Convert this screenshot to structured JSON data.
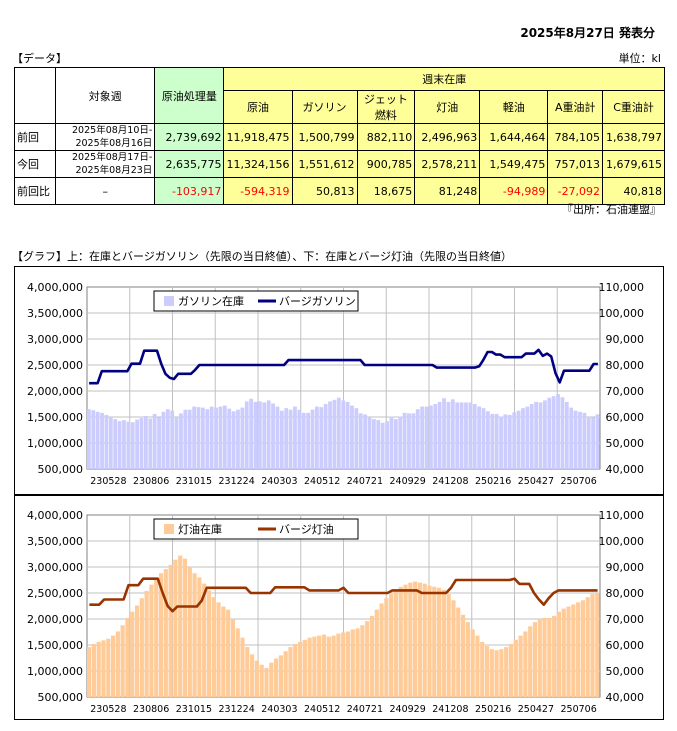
{
  "header": {
    "publish_date": "2025年8月27日 発表分",
    "data_tag": "【データ】",
    "unit": "単位：kl"
  },
  "table": {
    "col_week": "対象週",
    "col_crude_processing": "原油処理量",
    "col_stock_group": "週末在庫",
    "stock_columns": [
      "原油",
      "ガソリン",
      "ジェット燃料",
      "灯油",
      "軽油",
      "A重油計",
      "C重油計"
    ],
    "rows": [
      {
        "label": "前回",
        "week_line1": "2025年08月10日-",
        "week_line2": "2025年08月16日",
        "processing": "2,739,692",
        "values": [
          "11,918,475",
          "1,500,799",
          "882,110",
          "2,496,963",
          "1,644,464",
          "784,105",
          "1,638,797"
        ]
      },
      {
        "label": "今回",
        "week_line1": "2025年08月17日-",
        "week_line2": "2025年08月23日",
        "processing": "2,635,775",
        "values": [
          "11,324,156",
          "1,551,612",
          "900,785",
          "2,578,211",
          "1,549,475",
          "757,013",
          "1,679,615"
        ]
      }
    ],
    "diff_row": {
      "label": "前回比",
      "week": "–",
      "processing": "-103,917",
      "values": [
        "-594,319",
        "50,813",
        "18,675",
        "81,248",
        "-94,989",
        "-27,092",
        "40,818"
      ]
    },
    "source": "『出所：石油連盟』"
  },
  "graph_caption": "【グラフ】上：在庫とバージガソリン（先限の当日終値）、下：在庫とバージ灯油（先限の当日終値）",
  "colors": {
    "gasoline_bar": "#ccccff",
    "gasoline_line": "#000080",
    "kerosene_bar": "#ffcc99",
    "kerosene_line": "#993300",
    "plot_bg": "#ffffff",
    "grid": "#c0c0c0"
  },
  "chart_data": [
    {
      "type": "bar+line",
      "legend": [
        "ガソリン在庫",
        "バージガソリン"
      ],
      "x_tick_labels": [
        "230528",
        "230806",
        "231015",
        "231224",
        "240303",
        "240512",
        "240721",
        "240929",
        "241208",
        "250216",
        "250427",
        "250706"
      ],
      "y_left_ticks": [
        "500,000",
        "1,000,000",
        "1,500,000",
        "2,000,000",
        "2,500,000",
        "3,000,000",
        "3,500,000",
        "4,000,000"
      ],
      "y_right_ticks": [
        "40,000",
        "50,000",
        "60,000",
        "70,000",
        "80,000",
        "90,000",
        "100,000",
        "110,000"
      ],
      "ylim_left": [
        500000,
        4000000
      ],
      "ylim_right": [
        40000,
        110000
      ],
      "stock": [
        1650000,
        1630000,
        1600000,
        1580000,
        1540000,
        1500000,
        1460000,
        1420000,
        1440000,
        1410000,
        1400000,
        1450000,
        1480000,
        1520000,
        1470000,
        1560000,
        1490000,
        1600000,
        1650000,
        1620000,
        1500000,
        1570000,
        1640000,
        1640000,
        1700000,
        1690000,
        1680000,
        1650000,
        1700000,
        1680000,
        1700000,
        1720000,
        1660000,
        1610000,
        1640000,
        1680000,
        1800000,
        1850000,
        1790000,
        1800000,
        1780000,
        1820000,
        1760000,
        1700000,
        1620000,
        1670000,
        1640000,
        1700000,
        1640000,
        1580000,
        1580000,
        1640000,
        1700000,
        1690000,
        1750000,
        1800000,
        1830000,
        1870000,
        1820000,
        1790000,
        1720000,
        1670000,
        1570000,
        1550000,
        1500000,
        1460000,
        1440000,
        1390000,
        1420000,
        1510000,
        1460000,
        1510000,
        1580000,
        1570000,
        1570000,
        1650000,
        1700000,
        1700000,
        1720000,
        1750000,
        1790000,
        1860000,
        1790000,
        1840000,
        1780000,
        1780000,
        1780000,
        1780000,
        1750000,
        1700000,
        1670000,
        1610000,
        1560000,
        1560000,
        1510000,
        1550000,
        1540000,
        1590000,
        1620000,
        1670000,
        1700000,
        1750000,
        1790000,
        1780000,
        1820000,
        1870000,
        1900000,
        1940000,
        1880000,
        1790000,
        1680000,
        1620000,
        1600000,
        1580000,
        1500000,
        1490000,
        1550000
      ],
      "price": [
        73000,
        73000,
        73000,
        77600,
        77600,
        77600,
        77600,
        77600,
        77600,
        77600,
        80500,
        80500,
        80500,
        85500,
        85500,
        85500,
        85500,
        80500,
        76600,
        75100,
        74600,
        76600,
        76600,
        76600,
        76600,
        78100,
        80000,
        80000,
        80000,
        80000,
        80000,
        80000,
        80000,
        80000,
        80000,
        80000,
        80000,
        80000,
        80000,
        80000,
        80000,
        80000,
        80000,
        80000,
        80000,
        80000,
        80000,
        81900,
        81900,
        81900,
        81900,
        81900,
        81900,
        81900,
        81900,
        81900,
        81900,
        81900,
        81900,
        81900,
        81900,
        81900,
        81900,
        81900,
        81900,
        80000,
        80000,
        80000,
        80000,
        80000,
        80000,
        80000,
        80000,
        80000,
        80000,
        80000,
        80000,
        80000,
        80000,
        80000,
        80000,
        80000,
        79000,
        79000,
        79000,
        79000,
        79000,
        79000,
        79000,
        79000,
        79000,
        79000,
        79500,
        82000,
        85000,
        85000,
        84000,
        84000,
        83000,
        83000,
        83000,
        83000,
        83000,
        84400,
        84400,
        84400,
        85800,
        83500,
        84400,
        83300,
        76900,
        73300,
        77800,
        77800,
        77800,
        77800,
        77800,
        77800,
        77800,
        80400,
        80400
      ]
    },
    {
      "type": "bar+line",
      "legend": [
        "灯油在庫",
        "バージ灯油"
      ],
      "x_tick_labels": [
        "230528",
        "230806",
        "231015",
        "231224",
        "240303",
        "240512",
        "240721",
        "240929",
        "241208",
        "250216",
        "250427",
        "250706"
      ],
      "y_left_ticks": [
        "500,000",
        "1,000,000",
        "1,500,000",
        "2,000,000",
        "2,500,000",
        "3,000,000",
        "3,500,000",
        "4,000,000"
      ],
      "y_right_ticks": [
        "40,000",
        "50,000",
        "60,000",
        "70,000",
        "80,000",
        "90,000",
        "100,000",
        "110,000"
      ],
      "ylim_left": [
        500000,
        4000000
      ],
      "ylim_right": [
        40000,
        110000
      ],
      "stock": [
        1460000,
        1520000,
        1560000,
        1590000,
        1620000,
        1680000,
        1760000,
        1880000,
        2020000,
        2140000,
        2260000,
        2400000,
        2540000,
        2660000,
        2780000,
        2880000,
        2960000,
        3040000,
        3140000,
        3220000,
        3160000,
        3000000,
        2880000,
        2800000,
        2680000,
        2550000,
        2420000,
        2320000,
        2240000,
        2180000,
        2000000,
        1820000,
        1640000,
        1460000,
        1320000,
        1200000,
        1120000,
        1060000,
        1160000,
        1240000,
        1300000,
        1380000,
        1460000,
        1520000,
        1560000,
        1600000,
        1640000,
        1660000,
        1680000,
        1700000,
        1660000,
        1680000,
        1720000,
        1740000,
        1760000,
        1800000,
        1820000,
        1880000,
        1960000,
        2060000,
        2180000,
        2300000,
        2400000,
        2480000,
        2560000,
        2620000,
        2660000,
        2700000,
        2720000,
        2700000,
        2680000,
        2640000,
        2620000,
        2600000,
        2560000,
        2480000,
        2360000,
        2220000,
        2080000,
        1940000,
        1800000,
        1680000,
        1560000,
        1480000,
        1420000,
        1400000,
        1420000,
        1460000,
        1520000,
        1600000,
        1680000,
        1760000,
        1860000,
        1940000,
        2000000,
        2020000,
        2020000,
        2060000,
        2140000,
        2200000,
        2240000,
        2280000,
        2320000,
        2360000,
        2420000,
        2480000,
        2500000
      ],
      "price": [
        75500,
        75500,
        75500,
        77500,
        77500,
        77500,
        77500,
        77500,
        83000,
        83000,
        83000,
        85500,
        85500,
        85500,
        85500,
        80000,
        75000,
        73000,
        74800,
        74800,
        74800,
        74800,
        74800,
        77100,
        82000,
        82000,
        82000,
        82000,
        82000,
        82000,
        82000,
        82000,
        82000,
        80000,
        80000,
        80000,
        80000,
        80000,
        82200,
        82200,
        82200,
        82200,
        82200,
        82200,
        82200,
        81000,
        81000,
        81000,
        81000,
        81000,
        81000,
        81000,
        82000,
        80000,
        80000,
        80000,
        80000,
        80000,
        80000,
        80000,
        80000,
        80000,
        81000,
        81000,
        81000,
        81000,
        81000,
        81000,
        80000,
        80000,
        80000,
        80000,
        80000,
        80000,
        82000,
        85000,
        85000,
        85000,
        85000,
        85000,
        85000,
        85000,
        85000,
        85000,
        85000,
        85000,
        85000,
        85500,
        83500,
        83500,
        83500,
        80000,
        77500,
        75500,
        78000,
        80000,
        81000,
        81000,
        81000,
        81000,
        81000,
        81000,
        81000,
        81000,
        81000
      ]
    }
  ]
}
